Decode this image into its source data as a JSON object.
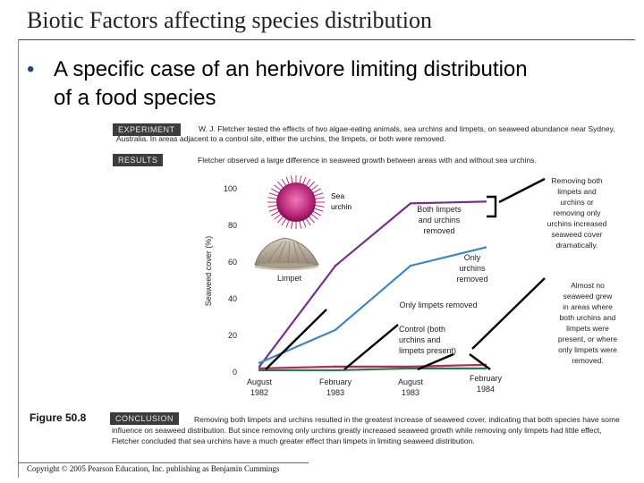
{
  "slide": {
    "title": "Biotic Factors affecting species distribution",
    "bullet": "A specific case of an herbivore limiting distribution of a food species",
    "figure_label": "Figure 50.8",
    "copyright": "Copyright © 2005 Pearson Education, Inc. publishing as Benjamin Cummings"
  },
  "experiment": {
    "tag": "EXPERIMENT",
    "text": "W. J. Fletcher tested the effects of two algae-eating animals, sea urchins and limpets, on seaweed abundance near Sydney, Australia. In areas adjacent to a control site, either the urchins, the limpets, or both were removed."
  },
  "results": {
    "tag": "RESULTS",
    "text": "Fletcher observed a large difference in seaweed growth between areas with and without sea urchins."
  },
  "conclusion": {
    "tag": "CONCLUSION",
    "text": "Removing both limpets and urchins resulted in the greatest increase of seaweed cover, indicating that both species have some influence on seaweed distribution. But since removing only urchins greatly increased seaweed growth while removing only limpets had little effect, Fletcher concluded that sea urchins have a much greater effect than limpets in limiting seaweed distribution."
  },
  "chart_data": {
    "type": "line",
    "ylabel": "Seaweed cover (%)",
    "ylim": [
      0,
      100
    ],
    "yticks": [
      "0",
      "20",
      "40",
      "60",
      "80",
      "100"
    ],
    "categories": [
      "August 1982",
      "February 1983",
      "August 1983",
      "February 1984"
    ],
    "category_lines": [
      [
        "August",
        "1982"
      ],
      [
        "February",
        "1983"
      ],
      [
        "August",
        "1983"
      ],
      [
        "February",
        "1984"
      ]
    ],
    "series": [
      {
        "name": "Both limpets and urchins removed",
        "color": "#7b2d8e",
        "values": [
          3,
          58,
          92,
          93
        ]
      },
      {
        "name": "Only urchins removed",
        "color": "#3a86c8",
        "values": [
          5,
          23,
          58,
          68
        ]
      },
      {
        "name": "Only limpets removed",
        "color": "#b0324e",
        "values": [
          2,
          3,
          3,
          4
        ]
      },
      {
        "name": "Control (both urchins and limpets present)",
        "color": "#2a7a5a",
        "values": [
          1,
          1,
          2,
          2
        ]
      }
    ],
    "series_labels": [
      [
        "Both limpets",
        "and urchins",
        "removed"
      ],
      [
        "Only",
        "urchins",
        "removed"
      ],
      [
        "Only limpets removed"
      ],
      [
        "Control (both",
        "urchins and",
        "limpets present)"
      ]
    ],
    "organism_labels": {
      "urchin": [
        "Sea",
        "urchin"
      ],
      "limpet": "Limpet"
    },
    "annotations": {
      "top": [
        "Removing both",
        "limpets and",
        "urchins or",
        "removing only",
        "urchins increased",
        "seaweed cover",
        "dramatically."
      ],
      "bottom": [
        "Almost no",
        "seaweed grew",
        "in areas where",
        "both urchins and",
        "limpets were",
        "present, or where",
        "only limpets were",
        "removed."
      ]
    }
  }
}
